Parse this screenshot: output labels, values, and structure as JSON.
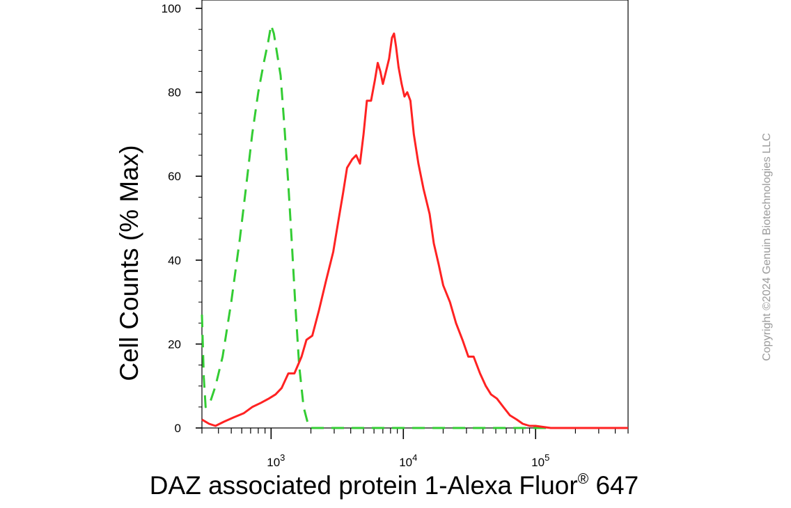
{
  "chart_data": {
    "type": "line",
    "title": "",
    "xlabel_main": "DAZ associated protein 1-Alexa Fluor",
    "xlabel_sup": "®",
    "xlabel_tail": " 647",
    "ylabel": "Cell Counts (% Max)",
    "x_scale": "log",
    "xlim": [
      300,
      500000
    ],
    "ylim": [
      0,
      102
    ],
    "y_ticks": [
      {
        "value": 0,
        "label": "0"
      },
      {
        "value": 20,
        "label": "20"
      },
      {
        "value": 40,
        "label": "40"
      },
      {
        "value": 60,
        "label": "60"
      },
      {
        "value": 80,
        "label": "80"
      },
      {
        "value": 100,
        "label": "100"
      }
    ],
    "x_major_ticks": [
      {
        "value": 1000,
        "base": "10",
        "exp": "3"
      },
      {
        "value": 10000,
        "base": "10",
        "exp": "4"
      },
      {
        "value": 100000,
        "base": "10",
        "exp": "5"
      }
    ],
    "grid": false,
    "legend": "none",
    "series": [
      {
        "color": "#33cc33",
        "style": "dashed",
        "points": [
          [
            300,
            27
          ],
          [
            310,
            12
          ],
          [
            320,
            5
          ],
          [
            345,
            6
          ],
          [
            380,
            10
          ],
          [
            430,
            17
          ],
          [
            500,
            30
          ],
          [
            580,
            45
          ],
          [
            650,
            58
          ],
          [
            720,
            70
          ],
          [
            800,
            80
          ],
          [
            880,
            87
          ],
          [
            950,
            92
          ],
          [
            1000,
            96
          ],
          [
            1050,
            94
          ],
          [
            1100,
            90
          ],
          [
            1180,
            84
          ],
          [
            1260,
            72
          ],
          [
            1350,
            58
          ],
          [
            1430,
            45
          ],
          [
            1520,
            30
          ],
          [
            1630,
            15
          ],
          [
            1760,
            5
          ],
          [
            1900,
            1
          ],
          [
            2000,
            0
          ],
          [
            2500,
            0
          ],
          [
            10000,
            0
          ],
          [
            100000,
            0
          ],
          [
            500000,
            0
          ]
        ]
      },
      {
        "color": "#ff2222",
        "style": "solid",
        "points": [
          [
            300,
            2
          ],
          [
            340,
            1
          ],
          [
            380,
            0.5
          ],
          [
            440,
            1.5
          ],
          [
            520,
            2.5
          ],
          [
            620,
            3.5
          ],
          [
            720,
            5
          ],
          [
            840,
            6
          ],
          [
            960,
            7
          ],
          [
            1080,
            8
          ],
          [
            1200,
            9.5
          ],
          [
            1350,
            13
          ],
          [
            1500,
            13
          ],
          [
            1700,
            17
          ],
          [
            1850,
            21
          ],
          [
            2050,
            22
          ],
          [
            2300,
            28
          ],
          [
            2600,
            35
          ],
          [
            2950,
            42
          ],
          [
            3250,
            50
          ],
          [
            3500,
            56
          ],
          [
            3750,
            62
          ],
          [
            4100,
            64
          ],
          [
            4400,
            65
          ],
          [
            4700,
            63
          ],
          [
            5000,
            70
          ],
          [
            5300,
            78
          ],
          [
            5700,
            78
          ],
          [
            6100,
            83
          ],
          [
            6400,
            87
          ],
          [
            6700,
            85
          ],
          [
            7000,
            82
          ],
          [
            7400,
            85
          ],
          [
            7800,
            88
          ],
          [
            8200,
            93
          ],
          [
            8500,
            94
          ],
          [
            8800,
            91
          ],
          [
            9200,
            86
          ],
          [
            9700,
            82
          ],
          [
            10200,
            79
          ],
          [
            10700,
            80
          ],
          [
            11300,
            78
          ],
          [
            12000,
            70
          ],
          [
            13000,
            63
          ],
          [
            14200,
            57
          ],
          [
            15800,
            51
          ],
          [
            17000,
            44
          ],
          [
            18500,
            39
          ],
          [
            20000,
            34
          ],
          [
            22500,
            30
          ],
          [
            25000,
            25
          ],
          [
            28000,
            21
          ],
          [
            31000,
            17
          ],
          [
            34000,
            17
          ],
          [
            38000,
            13
          ],
          [
            42000,
            10
          ],
          [
            46000,
            8
          ],
          [
            51000,
            7
          ],
          [
            57000,
            5
          ],
          [
            64000,
            3
          ],
          [
            72000,
            2
          ],
          [
            80000,
            1
          ],
          [
            90000,
            0.5
          ],
          [
            100000,
            0.5
          ],
          [
            130000,
            0
          ],
          [
            500000,
            0
          ]
        ]
      }
    ]
  },
  "copyright": "Copyright ©2024 Genuin Biotechnologies LLC"
}
